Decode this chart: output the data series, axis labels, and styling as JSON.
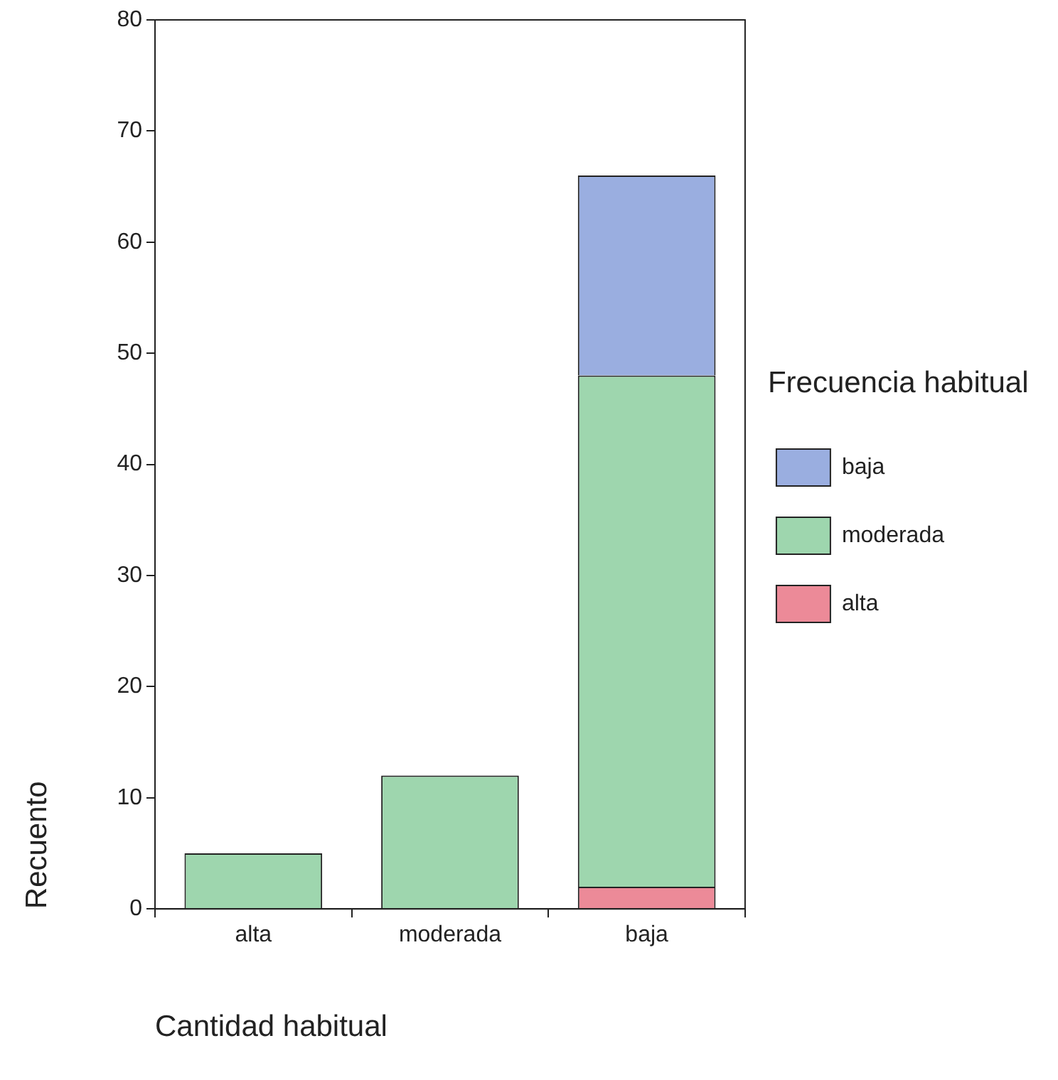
{
  "chart_data": {
    "type": "bar",
    "xlabel": "Cantidad habitual",
    "ylabel": "Recuento",
    "legend_title": "Frecuencia habitual",
    "categories": [
      "alta",
      "moderada",
      "baja"
    ],
    "series": [
      {
        "name": "alta",
        "color": "#ec8a98",
        "values": [
          0,
          0,
          2
        ]
      },
      {
        "name": "moderada",
        "color": "#9ed6ae",
        "values": [
          5,
          12,
          46
        ]
      },
      {
        "name": "baja",
        "color": "#9aaee0",
        "values": [
          0,
          0,
          18
        ]
      }
    ],
    "stacked": true,
    "ylim": [
      0,
      80
    ],
    "yticks": [
      0,
      10,
      20,
      30,
      40,
      50,
      60,
      70,
      80
    ],
    "grid": false,
    "legend": "right"
  }
}
